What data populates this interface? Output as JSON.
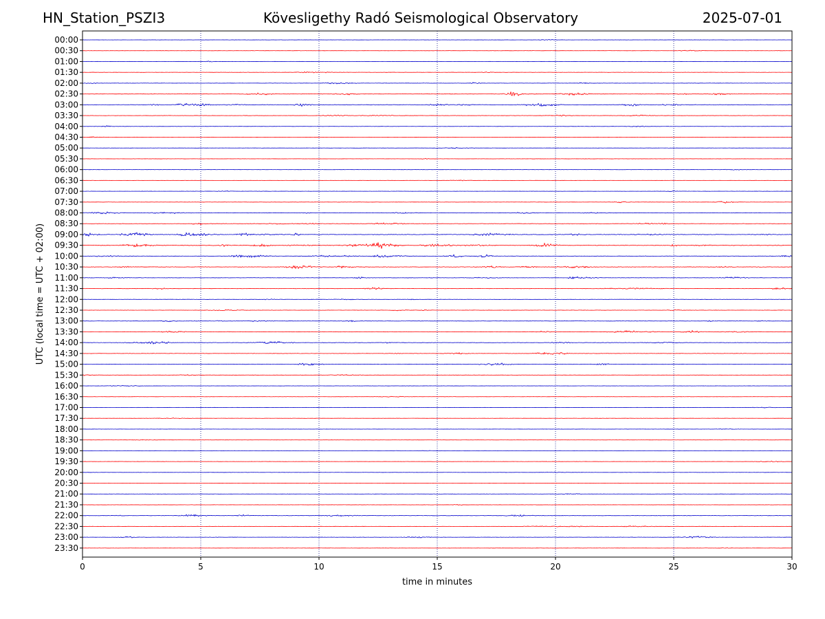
{
  "header": {
    "station": "HN_Station_PSZI3",
    "observatory": "Kövesligethy Radó Seismological Observatory",
    "date": "2025-07-01"
  },
  "chart_data": {
    "type": "line",
    "title": "Kövesligethy Radó Seismological Observatory",
    "xlabel": "time in minutes",
    "ylabel": "UTC (local time = UTC + 02:00)",
    "xlim": [
      0,
      30
    ],
    "xticks": [
      "0",
      "5",
      "10",
      "15",
      "20",
      "25",
      "30"
    ],
    "grid": "vertical dotted lines at x = 5, 10, 15, 20, 25",
    "colors": {
      "even_rows": "#0000cc",
      "odd_rows": "#ff0000",
      "grid": "#000080"
    },
    "rows": [
      {
        "label": "00:00",
        "activity": 0.1
      },
      {
        "label": "00:30",
        "activity": 0.08
      },
      {
        "label": "01:00",
        "activity": 0.1
      },
      {
        "label": "01:30",
        "activity": 0.2
      },
      {
        "label": "02:00",
        "activity": 0.3
      },
      {
        "label": "02:30",
        "activity": 0.6
      },
      {
        "label": "03:00",
        "activity": 0.7
      },
      {
        "label": "03:30",
        "activity": 0.3
      },
      {
        "label": "04:00",
        "activity": 0.15
      },
      {
        "label": "04:30",
        "activity": 0.08
      },
      {
        "label": "05:00",
        "activity": 0.08
      },
      {
        "label": "05:30",
        "activity": 0.08
      },
      {
        "label": "06:00",
        "activity": 0.08
      },
      {
        "label": "06:30",
        "activity": 0.08
      },
      {
        "label": "07:00",
        "activity": 0.12
      },
      {
        "label": "07:30",
        "activity": 0.2
      },
      {
        "label": "08:00",
        "activity": 0.4
      },
      {
        "label": "08:30",
        "activity": 0.5
      },
      {
        "label": "09:00",
        "activity": 0.9
      },
      {
        "label": "09:30",
        "activity": 1.0
      },
      {
        "label": "10:00",
        "activity": 0.8
      },
      {
        "label": "10:30",
        "activity": 0.7
      },
      {
        "label": "11:00",
        "activity": 0.4
      },
      {
        "label": "11:30",
        "activity": 0.4
      },
      {
        "label": "12:00",
        "activity": 0.2
      },
      {
        "label": "12:30",
        "activity": 0.3
      },
      {
        "label": "13:00",
        "activity": 0.4
      },
      {
        "label": "13:30",
        "activity": 0.5
      },
      {
        "label": "14:00",
        "activity": 0.5
      },
      {
        "label": "14:30",
        "activity": 0.4
      },
      {
        "label": "15:00",
        "activity": 0.4
      },
      {
        "label": "15:30",
        "activity": 0.2
      },
      {
        "label": "16:00",
        "activity": 0.1
      },
      {
        "label": "16:30",
        "activity": 0.1
      },
      {
        "label": "17:00",
        "activity": 0.08
      },
      {
        "label": "17:30",
        "activity": 0.08
      },
      {
        "label": "18:00",
        "activity": 0.08
      },
      {
        "label": "18:30",
        "activity": 0.08
      },
      {
        "label": "19:00",
        "activity": 0.08
      },
      {
        "label": "19:30",
        "activity": 0.08
      },
      {
        "label": "20:00",
        "activity": 0.08
      },
      {
        "label": "20:30",
        "activity": 0.1
      },
      {
        "label": "21:00",
        "activity": 0.08
      },
      {
        "label": "21:30",
        "activity": 0.08
      },
      {
        "label": "22:00",
        "activity": 0.4
      },
      {
        "label": "22:30",
        "activity": 0.2
      },
      {
        "label": "23:00",
        "activity": 0.3
      },
      {
        "label": "23:30",
        "activity": 0.1
      }
    ]
  }
}
